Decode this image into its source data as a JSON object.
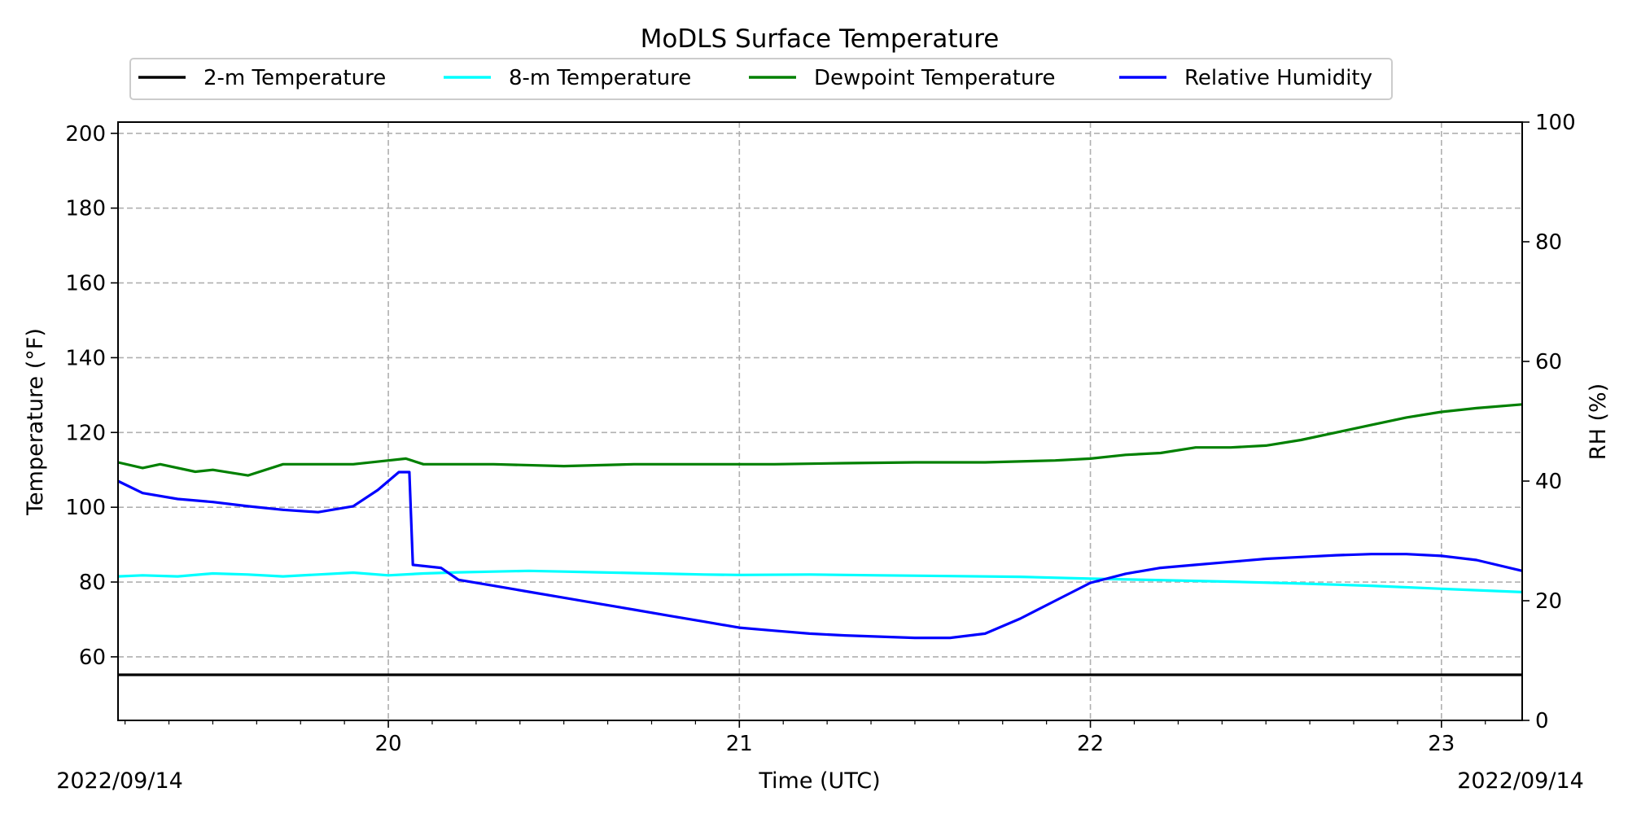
{
  "chart_data": {
    "type": "line",
    "title": "MoDLS Surface Temperature",
    "xlabel": "Time (UTC)",
    "ylabel": "Temperature ($^\\circ$F)",
    "ylabel_display": "Temperature (°F)",
    "y2label": "RH (%)",
    "date_left": "2022/09/14",
    "date_right": "2022/09/14",
    "xlim": [
      19.23,
      23.23
    ],
    "ylim": [
      43,
      203
    ],
    "y2lim": [
      0,
      100
    ],
    "xticks": [
      20,
      21,
      22,
      23
    ],
    "xtick_labels": [
      "20",
      "21",
      "22",
      "23"
    ],
    "yticks": [
      60,
      80,
      100,
      120,
      140,
      160,
      180,
      200
    ],
    "ytick_labels": [
      "60",
      "80",
      "100",
      "120",
      "140",
      "160",
      "180",
      "200"
    ],
    "y2ticks": [
      0,
      20,
      40,
      60,
      80,
      100
    ],
    "y2tick_labels": [
      "0",
      "20",
      "40",
      "60",
      "80",
      "100"
    ],
    "grid": true,
    "legend_position": "top",
    "series": [
      {
        "name": "2-m Temperature",
        "color": "#000000",
        "axis": "left",
        "x": [
          19.23,
          23.23
        ],
        "y": [
          55.2,
          55.2
        ]
      },
      {
        "name": "8-m Temperature",
        "color": "#00ffff",
        "axis": "left",
        "x": [
          19.23,
          19.3,
          19.4,
          19.5,
          19.6,
          19.7,
          19.8,
          19.9,
          20.0,
          20.1,
          20.2,
          20.3,
          20.4,
          20.5,
          20.6,
          20.7,
          20.8,
          20.9,
          21.0,
          21.2,
          21.4,
          21.6,
          21.8,
          22.0,
          22.2,
          22.4,
          22.6,
          22.8,
          23.0,
          23.23
        ],
        "y": [
          81.5,
          81.8,
          81.5,
          82.3,
          82.0,
          81.5,
          82.0,
          82.5,
          81.8,
          82.3,
          82.6,
          82.8,
          83.0,
          82.8,
          82.6,
          82.4,
          82.2,
          82.0,
          81.9,
          82.0,
          81.8,
          81.6,
          81.4,
          80.9,
          80.5,
          80.1,
          79.6,
          79.0,
          78.2,
          77.3
        ]
      },
      {
        "name": "Dewpoint Temperature",
        "color": "#008000",
        "axis": "left",
        "x": [
          19.23,
          19.3,
          19.35,
          19.45,
          19.5,
          19.6,
          19.7,
          19.8,
          19.9,
          20.0,
          20.05,
          20.1,
          20.3,
          20.5,
          20.7,
          20.9,
          21.1,
          21.3,
          21.5,
          21.7,
          21.9,
          22.0,
          22.1,
          22.2,
          22.3,
          22.4,
          22.5,
          22.6,
          22.7,
          22.8,
          22.9,
          23.0,
          23.1,
          23.23
        ],
        "y": [
          112.0,
          110.5,
          111.5,
          109.5,
          110.0,
          108.5,
          111.5,
          111.5,
          111.5,
          112.5,
          113.0,
          111.5,
          111.5,
          111.0,
          111.5,
          111.5,
          111.5,
          111.8,
          112.0,
          112.0,
          112.5,
          113.0,
          114.0,
          114.5,
          116.0,
          116.0,
          116.5,
          118.0,
          120.0,
          122.0,
          124.0,
          125.5,
          126.5,
          127.5
        ]
      },
      {
        "name": "Relative Humidity",
        "color": "#0000ff",
        "axis": "right",
        "x": [
          19.23,
          19.3,
          19.4,
          19.5,
          19.6,
          19.7,
          19.8,
          19.9,
          19.97,
          20.03,
          20.06,
          20.07,
          20.15,
          20.2,
          20.3,
          20.4,
          20.5,
          20.6,
          20.7,
          20.8,
          20.9,
          21.0,
          21.1,
          21.2,
          21.3,
          21.4,
          21.5,
          21.6,
          21.7,
          21.8,
          21.9,
          22.0,
          22.1,
          22.2,
          22.3,
          22.4,
          22.5,
          22.6,
          22.7,
          22.8,
          22.9,
          23.0,
          23.1,
          23.23
        ],
        "y": [
          40.0,
          38.0,
          37.0,
          36.5,
          35.8,
          35.2,
          34.8,
          35.8,
          38.5,
          41.5,
          41.5,
          26.0,
          25.5,
          23.5,
          22.5,
          21.5,
          20.5,
          19.5,
          18.5,
          17.5,
          16.5,
          15.5,
          15.0,
          14.5,
          14.2,
          14.0,
          13.8,
          13.8,
          14.5,
          17.0,
          20.0,
          23.0,
          24.5,
          25.5,
          26.0,
          26.5,
          27.0,
          27.3,
          27.6,
          27.8,
          27.8,
          27.5,
          26.8,
          25.0
        ]
      }
    ]
  }
}
